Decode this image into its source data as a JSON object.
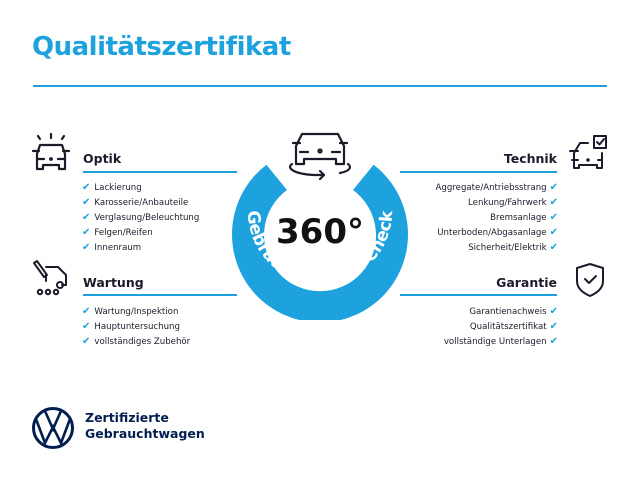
{
  "title": "Qualitätszertifikat",
  "badge": {
    "value": "360°",
    "arc_text": "Gebrauchtwagen-Check",
    "icon": "car-rotate-icon"
  },
  "sections": {
    "optik": {
      "heading": "Optik",
      "icon": "car-lights-icon",
      "items": [
        "Lackierung",
        "Karosserie/Anbauteile",
        "Verglasung/Beleuchtung",
        "Felgen/Reifen",
        "Innenraum"
      ]
    },
    "wartung": {
      "heading": "Wartung",
      "icon": "service-truck-icon",
      "items": [
        "Wartung/Inspektion",
        "Hauptuntersuchung",
        "vollständiges Zubehör"
      ]
    },
    "technik": {
      "heading": "Technik",
      "icon": "car-checkbox-icon",
      "items": [
        "Aggregate/Antriebsstrang",
        "Lenkung/Fahrwerk",
        "Bremsanlage",
        "Unterboden/Abgasanlage",
        "Sicherheit/Elektrik"
      ]
    },
    "garantie": {
      "heading": "Garantie",
      "icon": "shield-check-icon",
      "items": [
        "Garantienachweis",
        "Qualitätszertifikat",
        "vollständige Unterlagen"
      ]
    }
  },
  "check_mark": "✔",
  "footer": {
    "line1": "Zertifizierte",
    "line2": "Gebrauchtwagen",
    "logo": "vw-logo"
  },
  "colors": {
    "accent": "#1ea2dd",
    "text": "#1b1b2b",
    "brand": "#001e50"
  }
}
